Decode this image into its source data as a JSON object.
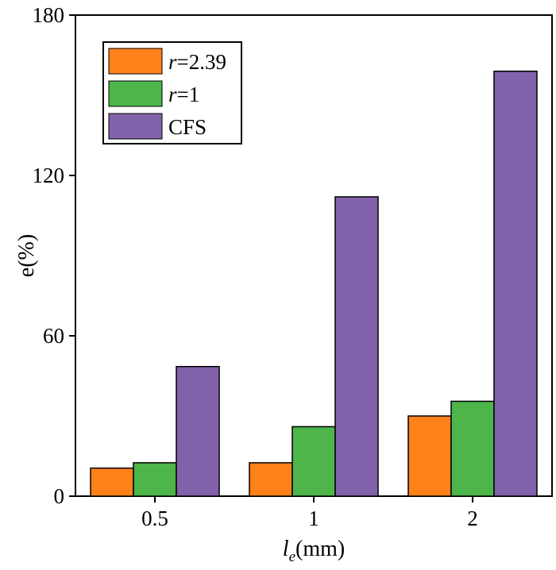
{
  "chart_data": {
    "type": "bar",
    "title": "",
    "xlabel_main": "l",
    "xlabel_sub": "e",
    "xlabel_unit": "(mm)",
    "ylabel": "e(%)",
    "categories": [
      "0.5",
      "1",
      "2"
    ],
    "ylim": [
      0,
      180
    ],
    "yticks": [
      "0",
      "60",
      "120",
      "180"
    ],
    "series": [
      {
        "name_var": "r",
        "name_rest": "=2.39",
        "color": "#FF8119",
        "values": [
          10.5,
          12.5,
          30
        ]
      },
      {
        "name_var": "r",
        "name_rest": "=1",
        "color": "#4DB54A",
        "values": [
          12.5,
          26,
          35.5
        ]
      },
      {
        "name": "CFS",
        "color": "#8162AA",
        "values": [
          48.5,
          112,
          159
        ]
      }
    ],
    "legend_position": "top-left",
    "grid": false
  }
}
